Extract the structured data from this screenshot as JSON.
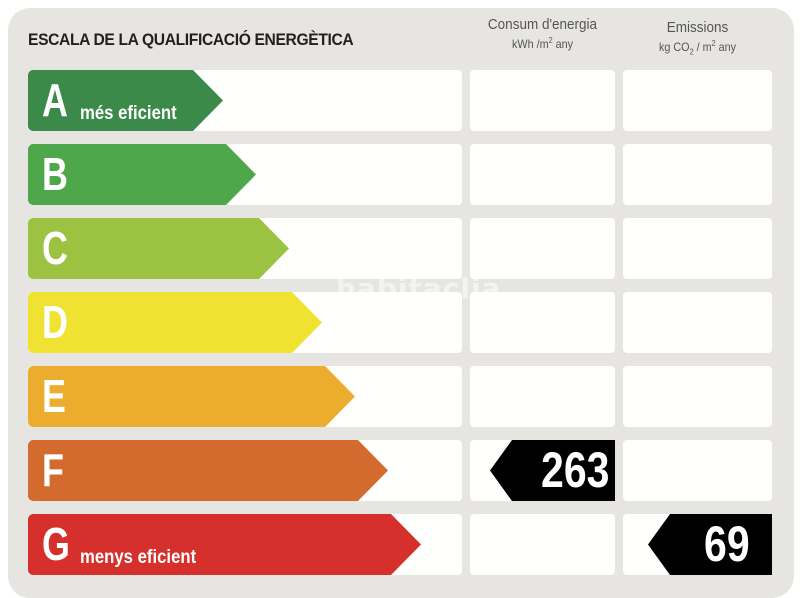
{
  "title": "ESCALA DE LA QUALIFICACIÓ ENERGÈTICA",
  "columns": {
    "consumption": {
      "label": "Consum d'energia",
      "unit_prefix": "kWh /m",
      "unit_sup": "2",
      "unit_suffix": " any"
    },
    "emissions": {
      "label": "Emissions",
      "unit_prefix": "kg CO",
      "unit_sub": "2",
      "unit_mid": " / m",
      "unit_sup": "2",
      "unit_suffix": " any"
    }
  },
  "ratings": [
    {
      "letter": "A",
      "note": "més eficient",
      "color": "#3b8a4a"
    },
    {
      "letter": "B",
      "note": "",
      "color": "#4ea74a"
    },
    {
      "letter": "C",
      "note": "",
      "color": "#9bc341"
    },
    {
      "letter": "D",
      "note": "",
      "color": "#f0e231"
    },
    {
      "letter": "E",
      "note": "",
      "color": "#ecad2e"
    },
    {
      "letter": "F",
      "note": "",
      "color": "#d46b2e"
    },
    {
      "letter": "G",
      "note": "menys eficient",
      "color": "#d5302b"
    }
  ],
  "results": {
    "consumption": {
      "rating": "F",
      "value": "263"
    },
    "emissions": {
      "rating": "G",
      "value": "69"
    }
  },
  "watermark": "habitaclia"
}
